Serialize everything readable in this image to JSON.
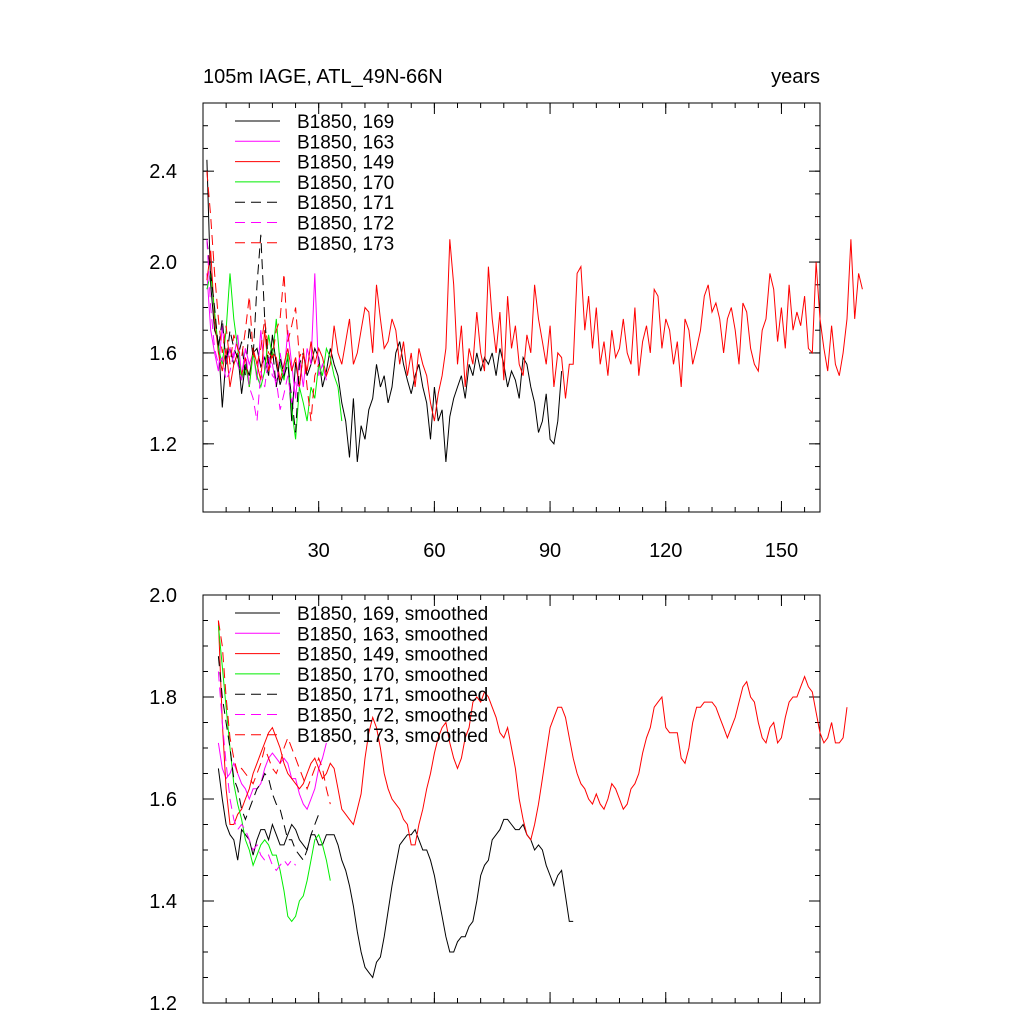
{
  "chart_data": [
    {
      "type": "line",
      "title_left": "105m IAGE, ATL_49N-66N",
      "title_right": "years",
      "xlim": [
        0,
        160
      ],
      "ylim": [
        0.9,
        2.7
      ],
      "xticks": [
        30,
        60,
        90,
        120,
        150
      ],
      "xtick_labels": [
        "30",
        "60",
        "90",
        "120",
        "150"
      ],
      "yticks": [
        1.2,
        1.6,
        2.0,
        2.4
      ],
      "ytick_labels": [
        "1.2",
        "1.6",
        "2.0",
        "2.4"
      ],
      "x_start": 1,
      "series": [
        {
          "name": "B1850, 169",
          "color": "#000000",
          "dash": "none",
          "values": [
            2.45,
            1.9,
            1.7,
            1.65,
            1.36,
            1.58,
            1.62,
            1.55,
            1.6,
            1.42,
            1.55,
            1.5,
            1.6,
            1.62,
            1.54,
            1.58,
            1.5,
            1.68,
            1.55,
            1.46,
            1.52,
            1.58,
            1.3,
            1.56,
            1.45,
            1.6,
            1.5,
            1.55,
            1.62,
            1.58,
            1.45,
            1.52,
            1.62,
            1.55,
            1.5,
            1.38,
            1.3,
            1.14,
            1.4,
            1.12,
            1.28,
            1.22,
            1.35,
            1.4,
            1.55,
            1.45,
            1.5,
            1.38,
            1.45,
            1.6,
            1.65,
            1.55,
            1.48,
            1.42,
            1.5,
            1.55,
            1.45,
            1.38,
            1.22,
            1.45,
            1.3,
            1.35,
            1.12,
            1.32,
            1.4,
            1.45,
            1.5,
            1.4,
            1.55,
            1.5,
            1.6,
            1.52,
            1.58,
            1.55,
            1.6,
            1.5,
            1.62,
            1.55,
            1.45,
            1.52,
            1.48,
            1.4,
            1.58,
            1.55,
            1.45,
            1.38,
            1.25,
            1.3,
            1.42,
            1.22,
            1.2,
            1.3,
            1.52
          ]
        },
        {
          "name": "B1850, 163",
          "color": "#ff00ff",
          "dash": "none",
          "values": [
            1.95,
            1.7,
            1.6,
            1.52,
            1.72,
            1.55,
            1.62,
            1.58,
            1.68,
            1.5,
            1.62,
            1.55,
            1.6,
            1.48,
            1.7,
            1.52,
            1.58,
            1.55,
            1.45,
            1.6,
            1.5,
            1.7,
            1.55,
            1.4,
            1.58,
            1.45,
            1.62,
            1.55,
            1.95,
            1.5,
            1.55,
            1.48
          ]
        },
        {
          "name": "B1850, 149",
          "color": "#ff0000",
          "dash": "none",
          "values": [
            1.92,
            2.05,
            1.75,
            1.6,
            1.52,
            1.62,
            1.45,
            1.55,
            1.6,
            1.5,
            1.58,
            1.45,
            1.62,
            1.55,
            1.48,
            1.7,
            1.52,
            1.6,
            1.58,
            1.48,
            1.55,
            1.62,
            1.52,
            1.58,
            1.45,
            1.6,
            1.52,
            1.65,
            1.55,
            1.62,
            1.58,
            1.5,
            1.55,
            1.72,
            1.6,
            1.55,
            1.65,
            1.75,
            1.55,
            1.6,
            1.7,
            1.8,
            1.78,
            1.6,
            1.9,
            1.75,
            1.62,
            1.65,
            1.75,
            1.7,
            1.55,
            1.65,
            1.5,
            1.6,
            1.45,
            1.62,
            1.55,
            1.5,
            1.38,
            1.3,
            1.42,
            1.5,
            1.62,
            2.1,
            1.9,
            1.55,
            1.72,
            1.45,
            1.62,
            1.55,
            1.78,
            1.6,
            1.52,
            1.98,
            1.75,
            1.6,
            1.78,
            1.48,
            1.85,
            1.62,
            1.72,
            1.55,
            1.5,
            1.68,
            1.6,
            1.9,
            1.75,
            1.65,
            1.55,
            1.72,
            1.45,
            1.6,
            1.58,
            1.4,
            1.55,
            1.55,
            1.95,
            1.98,
            1.7,
            1.85,
            1.62,
            1.8,
            1.55,
            1.65,
            1.5,
            1.7,
            1.58,
            1.62,
            1.75,
            1.6,
            1.55,
            1.8,
            1.5,
            1.65,
            1.72,
            1.6,
            1.88,
            1.85,
            1.62,
            1.75,
            1.7,
            1.55,
            1.65,
            1.45,
            1.75,
            1.7,
            1.55,
            1.62,
            1.7,
            1.85,
            1.9,
            1.78,
            1.82,
            1.75,
            1.6,
            1.75,
            1.8,
            1.7,
            1.55,
            1.82,
            1.78,
            1.62,
            1.55,
            1.52,
            1.7,
            1.75,
            1.95,
            1.88,
            1.65,
            1.8,
            1.62,
            1.9,
            1.7,
            1.78,
            1.72,
            1.85,
            1.62,
            1.6,
            2.0,
            1.75,
            1.62,
            1.52,
            1.72,
            1.55,
            1.5,
            1.6,
            1.75,
            2.1,
            1.75,
            1.95,
            1.88
          ]
        },
        {
          "name": "B1850, 170",
          "color": "#00ee00",
          "dash": "none",
          "values": [
            1.88,
            1.95,
            1.78,
            1.62,
            1.55,
            1.7,
            1.95,
            1.75,
            1.62,
            1.48,
            1.55,
            1.45,
            1.6,
            1.5,
            1.45,
            1.52,
            1.68,
            1.58,
            1.75,
            1.55,
            1.48,
            1.6,
            1.35,
            1.22,
            1.45,
            1.38,
            1.3,
            1.45,
            1.4,
            1.55,
            1.5,
            1.62,
            1.58,
            1.5,
            1.45,
            1.3
          ]
        },
        {
          "name": "B1850, 171",
          "color": "#000000",
          "dash": "10,6",
          "values": [
            2.1,
            1.95,
            1.8,
            1.62,
            1.75,
            1.55,
            1.7,
            1.62,
            1.58,
            1.65,
            1.5,
            1.72,
            1.58,
            1.9,
            2.12,
            1.75,
            1.55,
            1.62,
            1.45,
            1.58,
            1.5,
            1.55,
            1.4,
            1.25,
            1.55,
            1.6
          ]
        },
        {
          "name": "B1850, 172",
          "color": "#ff00ff",
          "dash": "10,6",
          "values": [
            2.1,
            1.8,
            1.62,
            1.55,
            1.58,
            1.48,
            1.52,
            1.6,
            1.55,
            1.48,
            1.62,
            1.45,
            1.4,
            1.3,
            1.52,
            1.45,
            1.58,
            1.5,
            1.48,
            1.35,
            1.42,
            1.5,
            1.38,
            1.48,
            1.45
          ]
        },
        {
          "name": "B1850, 173",
          "color": "#ff0000",
          "dash": "10,6",
          "values": [
            2.4,
            2.2,
            1.95,
            1.75,
            1.6,
            1.72,
            1.55,
            1.68,
            1.62,
            1.58,
            1.7,
            1.85,
            1.6,
            1.55,
            1.62,
            1.75,
            1.6,
            1.58,
            1.7,
            1.75,
            1.95,
            1.65,
            1.72,
            1.8,
            1.58,
            1.62,
            1.45,
            1.3,
            1.5,
            1.55
          ]
        }
      ]
    },
    {
      "type": "line",
      "title_left": "",
      "title_right": "",
      "xlim": [
        0,
        160
      ],
      "ylim": [
        1.2,
        2.0
      ],
      "xticks": [
        30,
        60,
        90,
        120,
        150
      ],
      "xtick_labels": [],
      "yticks": [
        1.2,
        1.4,
        1.6,
        1.8,
        2.0
      ],
      "ytick_labels": [
        "1.2",
        "1.4",
        "1.6",
        "1.8",
        "2.0"
      ],
      "x_start": 4,
      "series": [
        {
          "name": "B1850, 169, smoothed",
          "color": "#000000",
          "dash": "none",
          "values": [
            1.66,
            1.6,
            1.55,
            1.53,
            1.52,
            1.48,
            1.54,
            1.53,
            1.52,
            1.49,
            1.52,
            1.54,
            1.54,
            1.52,
            1.55,
            1.53,
            1.51,
            1.51,
            1.53,
            1.55,
            1.54,
            1.52,
            1.51,
            1.5,
            1.53,
            1.53,
            1.51,
            1.51,
            1.53,
            1.53,
            1.53,
            1.51,
            1.48,
            1.46,
            1.43,
            1.39,
            1.34,
            1.3,
            1.27,
            1.26,
            1.25,
            1.28,
            1.29,
            1.33,
            1.38,
            1.43,
            1.47,
            1.51,
            1.52,
            1.53,
            1.53,
            1.54,
            1.52,
            1.5,
            1.5,
            1.48,
            1.45,
            1.41,
            1.37,
            1.33,
            1.3,
            1.3,
            1.32,
            1.33,
            1.33,
            1.35,
            1.36,
            1.4,
            1.45,
            1.47,
            1.48,
            1.52,
            1.53,
            1.54,
            1.56,
            1.56,
            1.55,
            1.54,
            1.54,
            1.55,
            1.53,
            1.52,
            1.5,
            1.51,
            1.5,
            1.47,
            1.45,
            1.43,
            1.45,
            1.46,
            1.41,
            1.36,
            1.36
          ]
        },
        {
          "name": "B1850, 163, smoothed",
          "color": "#ff00ff",
          "dash": "none",
          "values": [
            1.71,
            1.66,
            1.64,
            1.65,
            1.67,
            1.65,
            1.63,
            1.62,
            1.6,
            1.62,
            1.62,
            1.63,
            1.66,
            1.68,
            1.69,
            1.68,
            1.67,
            1.68,
            1.67,
            1.64,
            1.64,
            1.61,
            1.59,
            1.58,
            1.6,
            1.62,
            1.66,
            1.68,
            1.71
          ]
        },
        {
          "name": "B1850, 149, smoothed",
          "color": "#ff0000",
          "dash": "none",
          "values": [
            1.95,
            1.75,
            1.62,
            1.55,
            1.55,
            1.57,
            1.58,
            1.6,
            1.62,
            1.65,
            1.67,
            1.69,
            1.71,
            1.73,
            1.74,
            1.72,
            1.7,
            1.67,
            1.65,
            1.64,
            1.63,
            1.62,
            1.63,
            1.65,
            1.67,
            1.68,
            1.66,
            1.64,
            1.65,
            1.67,
            1.66,
            1.62,
            1.58,
            1.57,
            1.56,
            1.55,
            1.58,
            1.61,
            1.68,
            1.73,
            1.76,
            1.74,
            1.7,
            1.65,
            1.62,
            1.6,
            1.59,
            1.58,
            1.56,
            1.55,
            1.51,
            1.51,
            1.55,
            1.58,
            1.62,
            1.65,
            1.69,
            1.72,
            1.74,
            1.75,
            1.71,
            1.68,
            1.66,
            1.68,
            1.72,
            1.74,
            1.79,
            1.8,
            1.79,
            1.81,
            1.8,
            1.78,
            1.76,
            1.73,
            1.72,
            1.74,
            1.7,
            1.66,
            1.6,
            1.56,
            1.53,
            1.52,
            1.55,
            1.59,
            1.64,
            1.69,
            1.74,
            1.76,
            1.78,
            1.78,
            1.76,
            1.72,
            1.68,
            1.65,
            1.63,
            1.62,
            1.6,
            1.59,
            1.61,
            1.59,
            1.58,
            1.6,
            1.63,
            1.62,
            1.6,
            1.58,
            1.59,
            1.62,
            1.63,
            1.65,
            1.69,
            1.72,
            1.74,
            1.78,
            1.79,
            1.8,
            1.74,
            1.73,
            1.73,
            1.73,
            1.68,
            1.67,
            1.7,
            1.75,
            1.78,
            1.78,
            1.79,
            1.79,
            1.79,
            1.78,
            1.76,
            1.74,
            1.72,
            1.74,
            1.76,
            1.79,
            1.82,
            1.83,
            1.8,
            1.79,
            1.75,
            1.72,
            1.71,
            1.74,
            1.75,
            1.71,
            1.72,
            1.76,
            1.79,
            1.8,
            1.8,
            1.82,
            1.84,
            1.82,
            1.81,
            1.77,
            1.73,
            1.71,
            1.72,
            1.75,
            1.71,
            1.71,
            1.72,
            1.78
          ]
        },
        {
          "name": "B1850, 170, smoothed",
          "color": "#00ee00",
          "dash": "none",
          "values": [
            1.94,
            1.86,
            1.78,
            1.7,
            1.63,
            1.59,
            1.56,
            1.52,
            1.5,
            1.47,
            1.49,
            1.51,
            1.52,
            1.51,
            1.49,
            1.49,
            1.46,
            1.42,
            1.37,
            1.36,
            1.37,
            1.4,
            1.41,
            1.44,
            1.48,
            1.52,
            1.53,
            1.51,
            1.48,
            1.44
          ]
        },
        {
          "name": "B1850, 171, smoothed",
          "color": "#000000",
          "dash": "10,6",
          "values": [
            1.88,
            1.8,
            1.75,
            1.7,
            1.64,
            1.62,
            1.58,
            1.56,
            1.58,
            1.6,
            1.62,
            1.63,
            1.65,
            1.64,
            1.61,
            1.59,
            1.58,
            1.55,
            1.52,
            1.52,
            1.5,
            1.49,
            1.48,
            1.5,
            1.53,
            1.55,
            1.57
          ]
        },
        {
          "name": "B1850, 172, smoothed",
          "color": "#ff00ff",
          "dash": "10,6",
          "values": [
            1.85,
            1.75,
            1.67,
            1.6,
            1.56,
            1.54,
            1.55,
            1.54,
            1.52,
            1.5,
            1.51,
            1.49,
            1.48,
            1.49,
            1.47,
            1.46,
            1.47,
            1.48,
            1.47,
            1.48,
            1.47
          ]
        },
        {
          "name": "B1850, 173, smoothed",
          "color": "#ff0000",
          "dash": "10,6",
          "values": [
            1.95,
            1.9,
            1.8,
            1.72,
            1.68,
            1.65,
            1.66,
            1.65,
            1.64,
            1.63,
            1.65,
            1.67,
            1.7,
            1.68,
            1.66,
            1.65,
            1.67,
            1.7,
            1.72,
            1.7,
            1.68,
            1.66,
            1.64,
            1.62,
            1.64,
            1.66,
            1.68,
            1.66,
            1.62,
            1.59
          ]
        }
      ]
    }
  ]
}
